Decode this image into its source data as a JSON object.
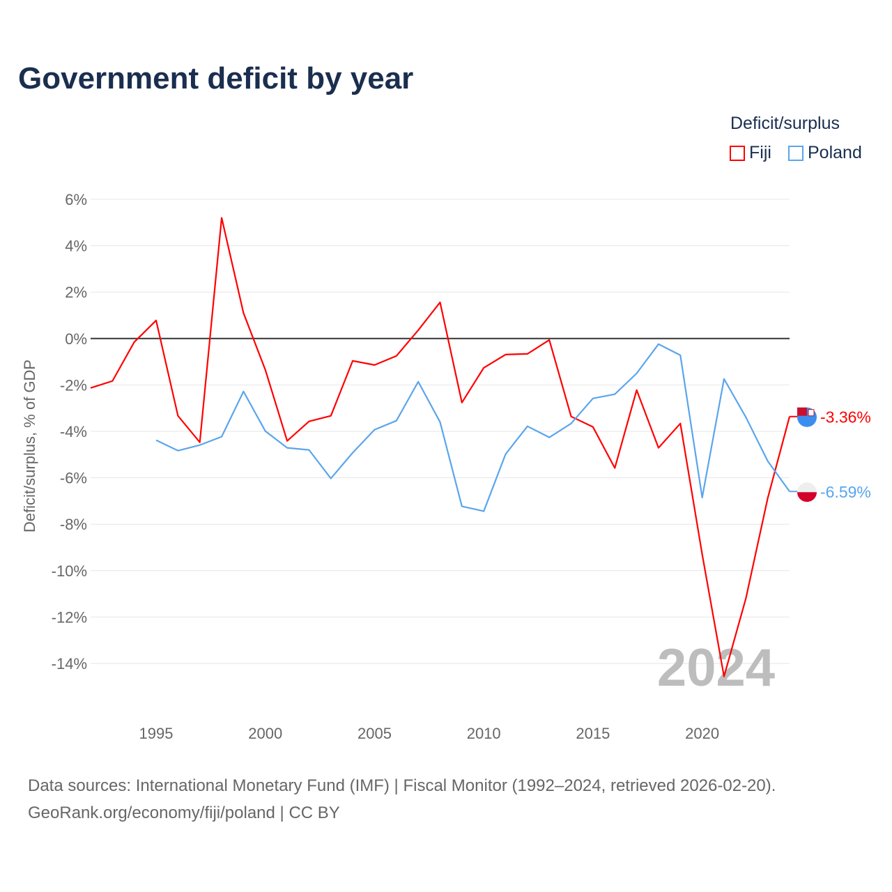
{
  "title": "Government deficit by year",
  "legend": {
    "title": "Deficit/surplus",
    "items": [
      {
        "name": "Fiji",
        "color": "#ff0000"
      },
      {
        "name": "Poland",
        "color": "#5aa5ec"
      }
    ]
  },
  "source_lines": [
    "Data sources: International Monetary Fund (IMF) | Fiscal Monitor (1992–2024, retrieved 2026-02-20).",
    "GeoRank.org/economy/fiji/poland | CC BY"
  ],
  "chart_data": {
    "type": "line",
    "title": "Government deficit by year",
    "xlabel": "",
    "ylabel": "Deficit/surplus, % of GDP",
    "xlim": [
      1992,
      2024
    ],
    "ylim": [
      -16,
      6
    ],
    "yticks": [
      6,
      4,
      2,
      0,
      -2,
      -4,
      -6,
      -8,
      -10,
      -12,
      -14
    ],
    "ytick_labels": [
      "6%",
      "4%",
      "2%",
      "0%",
      "-2%",
      "-4%",
      "-6%",
      "-8%",
      "-10%",
      "-12%",
      "-14%"
    ],
    "xticks": [
      1995,
      2000,
      2005,
      2010,
      2015,
      2020
    ],
    "xtick_labels": [
      "1995",
      "2000",
      "2005",
      "2010",
      "2015",
      "2020"
    ],
    "grid": true,
    "legend_position": "top-right",
    "watermark_year": "2024",
    "series": [
      {
        "name": "Fiji",
        "color": "#ff0000",
        "end_label": "-3.36%",
        "x": [
          1992,
          1993,
          1994,
          1995,
          1996,
          1997,
          1998,
          1999,
          2000,
          2001,
          2002,
          2003,
          2004,
          2005,
          2006,
          2007,
          2008,
          2009,
          2010,
          2011,
          2012,
          2013,
          2014,
          2015,
          2016,
          2017,
          2018,
          2019,
          2020,
          2021,
          2022,
          2023,
          2024
        ],
        "values": [
          -2.13,
          -1.83,
          -0.15,
          0.78,
          -3.33,
          -4.47,
          5.2,
          1.1,
          -1.35,
          -4.41,
          -3.57,
          -3.33,
          -0.96,
          -1.14,
          -0.75,
          0.36,
          1.56,
          -2.76,
          -1.26,
          -0.69,
          -0.66,
          -0.06,
          -3.36,
          -3.81,
          -5.58,
          -2.22,
          -4.71,
          -3.66,
          -9.3,
          -14.56,
          -11.2,
          -6.88,
          -3.36
        ]
      },
      {
        "name": "Poland",
        "color": "#5aa5ec",
        "end_label": "-6.59%",
        "x": [
          1995,
          1996,
          1997,
          1998,
          1999,
          2000,
          2001,
          2002,
          2003,
          2004,
          2005,
          2006,
          2007,
          2008,
          2009,
          2010,
          2011,
          2012,
          2013,
          2014,
          2015,
          2016,
          2017,
          2018,
          2019,
          2020,
          2021,
          2022,
          2023,
          2024
        ],
        "values": [
          -4.38,
          -4.83,
          -4.59,
          -4.23,
          -2.28,
          -3.99,
          -4.71,
          -4.8,
          -6.03,
          -4.92,
          -3.93,
          -3.54,
          -1.86,
          -3.6,
          -7.23,
          -7.44,
          -4.98,
          -3.78,
          -4.26,
          -3.66,
          -2.58,
          -2.4,
          -1.5,
          -0.24,
          -0.72,
          -6.85,
          -1.74,
          -3.39,
          -5.28,
          -6.59
        ]
      }
    ]
  }
}
